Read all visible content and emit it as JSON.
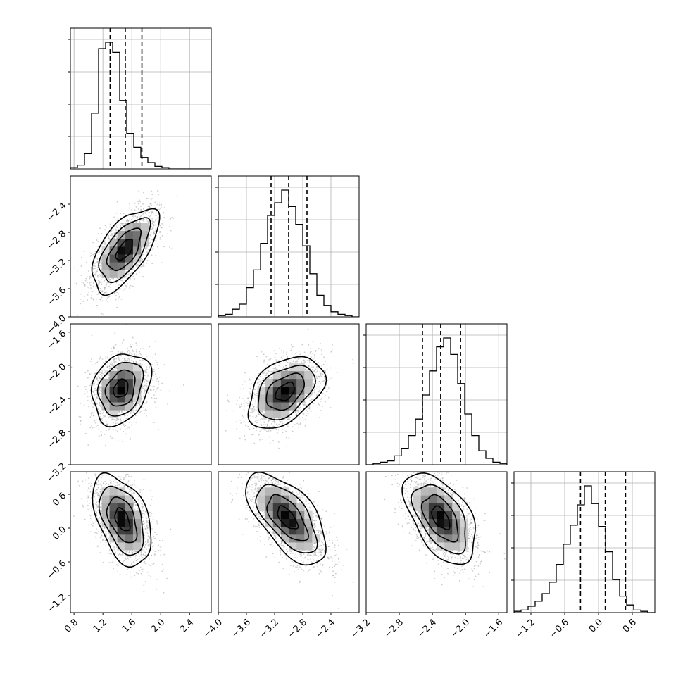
{
  "chart_data": {
    "type": "corner",
    "parameters": [
      {
        "range": [
          0.75,
          2.7
        ],
        "ticks": [
          0.8,
          1.2,
          1.6,
          2.0,
          2.4
        ],
        "tick_labels": [
          "0.8",
          "1.2",
          "1.6",
          "2.0",
          "2.4"
        ],
        "quantiles": [
          1.3,
          1.51,
          1.74
        ],
        "hist_edges_start": 0.75,
        "hist_bin_width": 0.0975,
        "hist_counts": [
          1,
          3,
          12,
          44,
          95,
          100,
          92,
          54,
          28,
          17,
          9,
          5,
          2,
          1,
          0,
          0,
          0,
          0,
          0,
          0
        ],
        "hist_max": 100
      },
      {
        "range": [
          -4.0,
          -2.0
        ],
        "ticks": [
          -4.0,
          -3.6,
          -3.2,
          -2.8,
          -2.4
        ],
        "tick_labels": [
          "−4.0",
          "−3.6",
          "−3.2",
          "−2.8",
          "−2.4"
        ],
        "quantiles": [
          -3.25,
          -3.0,
          -2.74
        ],
        "hist_edges_start": -4.0,
        "hist_bin_width": 0.1,
        "hist_counts": [
          1,
          2,
          6,
          10,
          23,
          37,
          58,
          80,
          90,
          100,
          87,
          73,
          56,
          34,
          17,
          9,
          4,
          2,
          1,
          0
        ],
        "hist_max": 100
      },
      {
        "range": [
          -3.2,
          -1.5
        ],
        "ticks": [
          -3.2,
          -2.8,
          -2.4,
          -2.0,
          -1.6
        ],
        "tick_labels": [
          "−3.2",
          "−2.8",
          "−2.4",
          "−2.0",
          "−1.6"
        ],
        "quantiles": [
          -2.52,
          -2.3,
          -2.06
        ],
        "hist_edges_start": -3.2,
        "hist_bin_width": 0.085,
        "hist_counts": [
          0,
          1,
          2,
          3,
          7,
          13,
          23,
          36,
          55,
          74,
          93,
          100,
          87,
          64,
          40,
          23,
          11,
          5,
          2,
          1
        ],
        "hist_max": 100
      },
      {
        "range": [
          -1.5,
          1.0
        ],
        "ticks": [
          -1.2,
          -0.6,
          0.0,
          0.6
        ],
        "tick_labels": [
          "−1.2",
          "−0.6",
          "0.0",
          "0.6"
        ],
        "quantiles": [
          -0.32,
          0.12,
          0.48
        ],
        "hist_edges_start": -1.5,
        "hist_bin_width": 0.125,
        "hist_counts": [
          1,
          2,
          5,
          9,
          15,
          24,
          38,
          54,
          69,
          85,
          100,
          86,
          68,
          48,
          26,
          13,
          6,
          2,
          1,
          0
        ],
        "hist_max": 100
      }
    ],
    "pairs": [
      {
        "row": 1,
        "col": 0,
        "center": [
          1.5,
          -3.05
        ],
        "sd": [
          0.17,
          0.22
        ],
        "rho": 0.62
      },
      {
        "row": 2,
        "col": 0,
        "center": [
          1.45,
          -2.28
        ],
        "sd": [
          0.15,
          0.16
        ],
        "rho": 0.25
      },
      {
        "row": 2,
        "col": 1,
        "center": [
          -3.05,
          -2.32
        ],
        "sd": [
          0.2,
          0.16
        ],
        "rho": 0.42
      },
      {
        "row": 3,
        "col": 0,
        "center": [
          1.47,
          0.15
        ],
        "sd": [
          0.15,
          0.3
        ],
        "rho": -0.45
      },
      {
        "row": 3,
        "col": 1,
        "center": [
          -3.02,
          0.18
        ],
        "sd": [
          0.21,
          0.3
        ],
        "rho": -0.62
      },
      {
        "row": 3,
        "col": 2,
        "center": [
          -2.3,
          0.18
        ],
        "sd": [
          0.16,
          0.3
        ],
        "rho": -0.52
      }
    ],
    "contour_levels_sigma": [
      0.5,
      1.0,
      1.5,
      2.0
    ],
    "grid": true,
    "colors": {
      "line": "#000000",
      "scatter": "#9e9e9e",
      "grid": "#b0b0b0",
      "frame": "#000000"
    }
  }
}
